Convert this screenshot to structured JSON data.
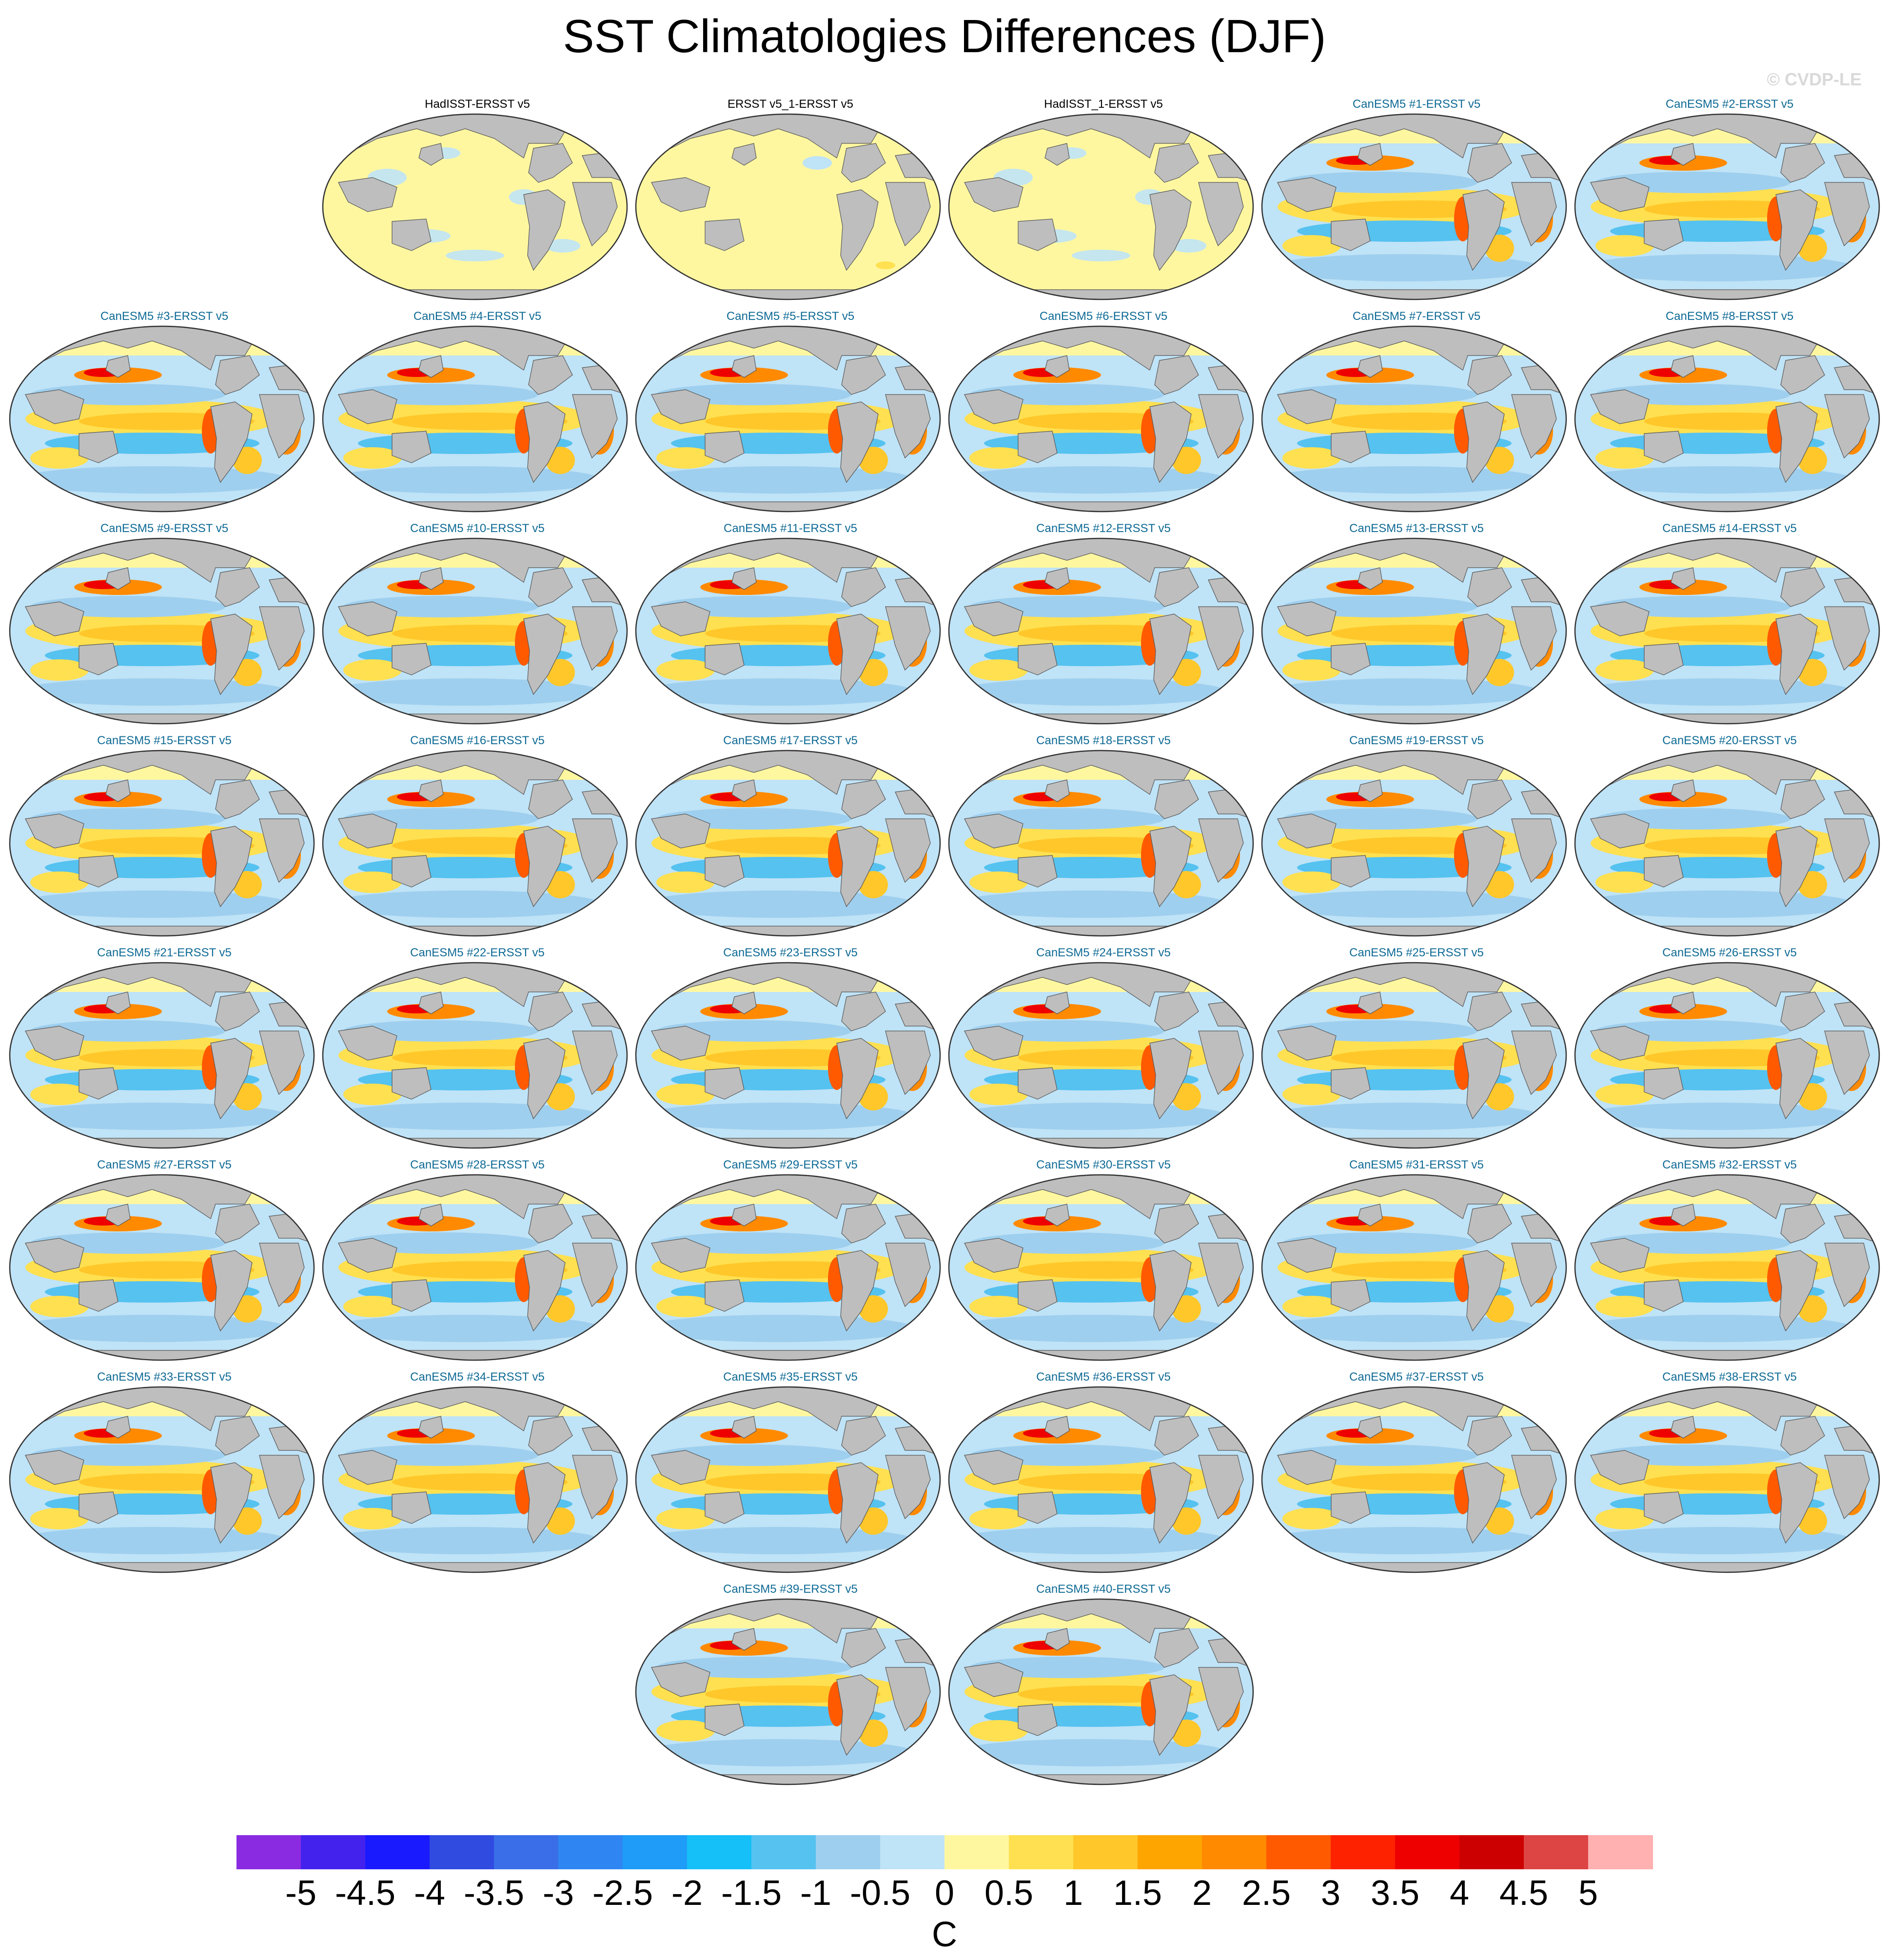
{
  "figure": {
    "title": "SST Climatologies Differences (DJF)",
    "copyright": "© CVDP-LE"
  },
  "colors": {
    "land": "#bebebe",
    "obs_title": "#000000",
    "model_title": "#0e6a95",
    "coast": "#555555"
  },
  "panels": [
    {
      "title": "HadISST-ERSST v5",
      "kind": "obs"
    },
    {
      "title": "ERSST v5_1-ERSST v5",
      "kind": "obs"
    },
    {
      "title": "HadISST_1-ERSST v5",
      "kind": "obs"
    },
    {
      "title": "CanESM5 #1-ERSST v5",
      "kind": "model"
    },
    {
      "title": "CanESM5 #2-ERSST v5",
      "kind": "model"
    },
    {
      "title": "CanESM5 #3-ERSST v5",
      "kind": "model"
    },
    {
      "title": "CanESM5 #4-ERSST v5",
      "kind": "model"
    },
    {
      "title": "CanESM5 #5-ERSST v5",
      "kind": "model"
    },
    {
      "title": "CanESM5 #6-ERSST v5",
      "kind": "model"
    },
    {
      "title": "CanESM5 #7-ERSST v5",
      "kind": "model"
    },
    {
      "title": "CanESM5 #8-ERSST v5",
      "kind": "model"
    },
    {
      "title": "CanESM5 #9-ERSST v5",
      "kind": "model"
    },
    {
      "title": "CanESM5 #10-ERSST v5",
      "kind": "model"
    },
    {
      "title": "CanESM5 #11-ERSST v5",
      "kind": "model"
    },
    {
      "title": "CanESM5 #12-ERSST v5",
      "kind": "model"
    },
    {
      "title": "CanESM5 #13-ERSST v5",
      "kind": "model"
    },
    {
      "title": "CanESM5 #14-ERSST v5",
      "kind": "model"
    },
    {
      "title": "CanESM5 #15-ERSST v5",
      "kind": "model"
    },
    {
      "title": "CanESM5 #16-ERSST v5",
      "kind": "model"
    },
    {
      "title": "CanESM5 #17-ERSST v5",
      "kind": "model"
    },
    {
      "title": "CanESM5 #18-ERSST v5",
      "kind": "model"
    },
    {
      "title": "CanESM5 #19-ERSST v5",
      "kind": "model"
    },
    {
      "title": "CanESM5 #20-ERSST v5",
      "kind": "model"
    },
    {
      "title": "CanESM5 #21-ERSST v5",
      "kind": "model"
    },
    {
      "title": "CanESM5 #22-ERSST v5",
      "kind": "model"
    },
    {
      "title": "CanESM5 #23-ERSST v5",
      "kind": "model"
    },
    {
      "title": "CanESM5 #24-ERSST v5",
      "kind": "model"
    },
    {
      "title": "CanESM5 #25-ERSST v5",
      "kind": "model"
    },
    {
      "title": "CanESM5 #26-ERSST v5",
      "kind": "model"
    },
    {
      "title": "CanESM5 #27-ERSST v5",
      "kind": "model"
    },
    {
      "title": "CanESM5 #28-ERSST v5",
      "kind": "model"
    },
    {
      "title": "CanESM5 #29-ERSST v5",
      "kind": "model"
    },
    {
      "title": "CanESM5 #30-ERSST v5",
      "kind": "model"
    },
    {
      "title": "CanESM5 #31-ERSST v5",
      "kind": "model"
    },
    {
      "title": "CanESM5 #32-ERSST v5",
      "kind": "model"
    },
    {
      "title": "CanESM5 #33-ERSST v5",
      "kind": "model"
    },
    {
      "title": "CanESM5 #34-ERSST v5",
      "kind": "model"
    },
    {
      "title": "CanESM5 #35-ERSST v5",
      "kind": "model"
    },
    {
      "title": "CanESM5 #36-ERSST v5",
      "kind": "model"
    },
    {
      "title": "CanESM5 #37-ERSST v5",
      "kind": "model"
    },
    {
      "title": "CanESM5 #38-ERSST v5",
      "kind": "model"
    },
    {
      "title": "CanESM5 #39-ERSST v5",
      "kind": "model"
    },
    {
      "title": "CanESM5 #40-ERSST v5",
      "kind": "model"
    }
  ],
  "colorbar": {
    "units": "C",
    "tick_labels": [
      "-5",
      "-4.5",
      "-4",
      "-3.5",
      "-3",
      "-2.5",
      "-2",
      "-1.5",
      "-1",
      "-0.5",
      "0",
      "0.5",
      "1",
      "1.5",
      "2",
      "2.5",
      "3",
      "3.5",
      "4",
      "4.5",
      "5"
    ],
    "colors": [
      "#8a2be2",
      "#4422ee",
      "#1a1aff",
      "#2f4be0",
      "#3a6ee8",
      "#2f86f2",
      "#1e9cf7",
      "#15bff7",
      "#55c2f0",
      "#9fcfee",
      "#bfe3f7",
      "#fff7a0",
      "#ffe050",
      "#ffc72a",
      "#ffa500",
      "#ff8a00",
      "#ff5a00",
      "#ff2200",
      "#ee0000",
      "#cc0000",
      "#dd4444",
      "#ffb0b0"
    ]
  }
}
